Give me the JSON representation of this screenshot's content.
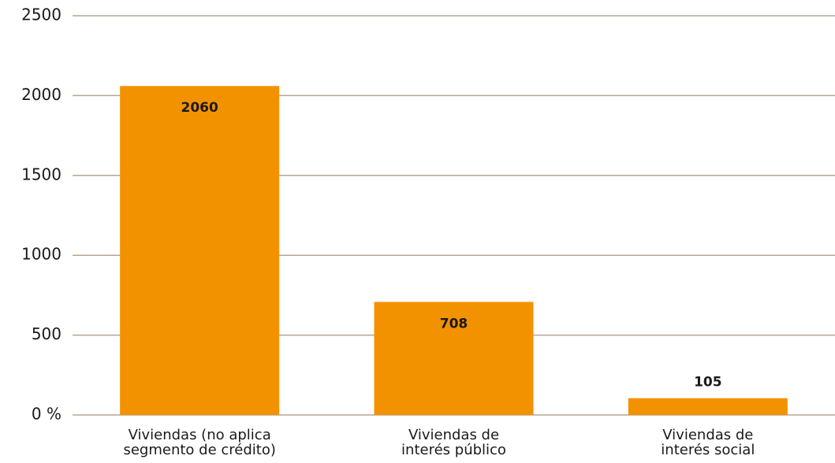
{
  "chart_data": {
    "type": "bar",
    "categories": [
      "Viviendas (no aplica\nsegmento de crédito)",
      "Viviendas de\ninterés público",
      "Viviendas de\ninterés social"
    ],
    "values": [
      2060,
      708,
      105
    ],
    "color": "#f39200",
    "ylim": [
      0,
      2500
    ],
    "yticks": [
      {
        "value": 0,
        "label": "0 %"
      },
      500,
      1000,
      1500,
      2000,
      2500
    ],
    "grid": true
  }
}
